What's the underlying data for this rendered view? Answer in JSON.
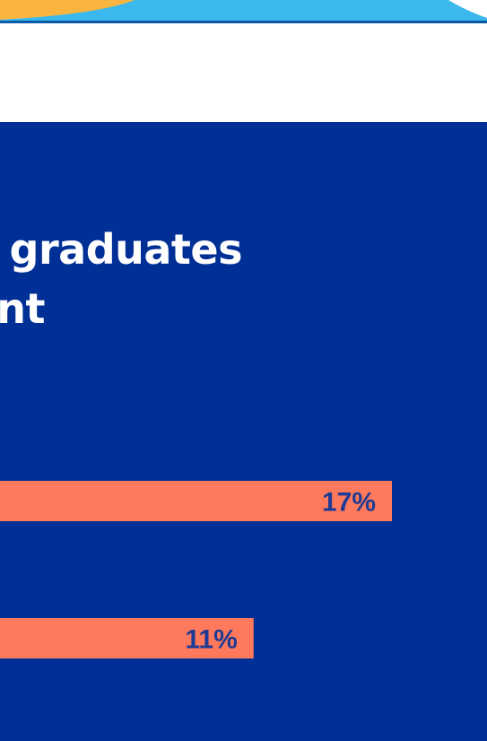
{
  "title": {
    "line1": "graduates",
    "line2": "nt"
  },
  "colors": {
    "panel": "#002f95",
    "bar": "#ff7a5c",
    "label": "#1f3a93",
    "title": "#ffffff",
    "band_orange": "#f9b53f",
    "band_blue": "#3bb8ec",
    "band_line": "#0b5aa6"
  },
  "chart_data": {
    "type": "bar",
    "orientation": "horizontal",
    "values": [
      17,
      11
    ],
    "value_labels": [
      "17%",
      "11%"
    ],
    "unit": "%",
    "xlim": [
      0,
      22
    ]
  }
}
